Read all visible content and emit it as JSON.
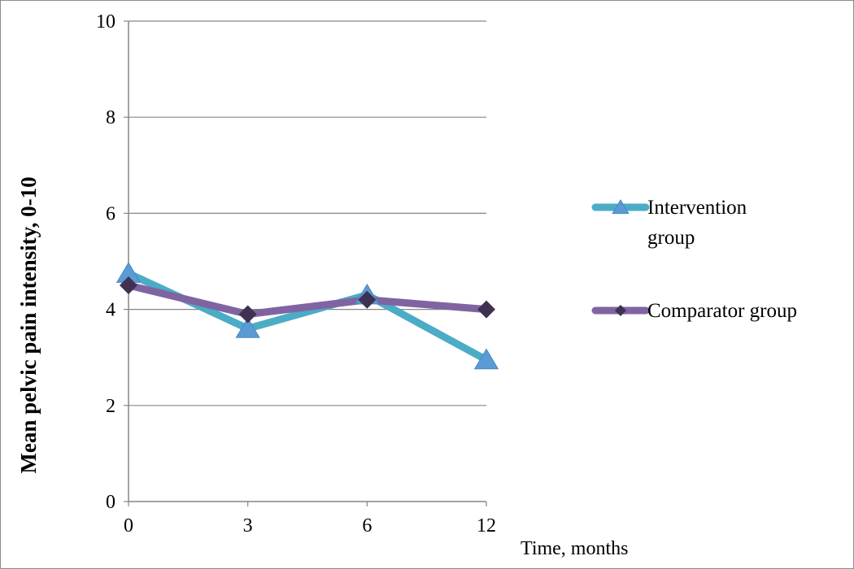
{
  "chart_data": {
    "type": "line",
    "title": "",
    "xlabel": "Time, months",
    "ylabel": "Mean pelvic pain intensity, 0-10",
    "categories": [
      "0",
      "3",
      "6",
      "12"
    ],
    "yticks": [
      "0",
      "2",
      "4",
      "6",
      "8",
      "10"
    ],
    "ylim": [
      0,
      10
    ],
    "grid": "horizontal",
    "legend_position": "right",
    "series": [
      {
        "name": "Intervention group",
        "name_lines": [
          "Intervention",
          "group"
        ],
        "marker": "triangle",
        "line_color": "#4bacc6",
        "marker_color": "#5b9bd5",
        "values": [
          4.75,
          3.6,
          4.3,
          2.95
        ]
      },
      {
        "name": "Comparator group",
        "name_lines": [
          "Comparator group"
        ],
        "marker": "diamond",
        "line_color": "#8064a2",
        "marker_color": "#3f3151",
        "values": [
          4.5,
          3.9,
          4.2,
          4.0
        ]
      }
    ]
  }
}
